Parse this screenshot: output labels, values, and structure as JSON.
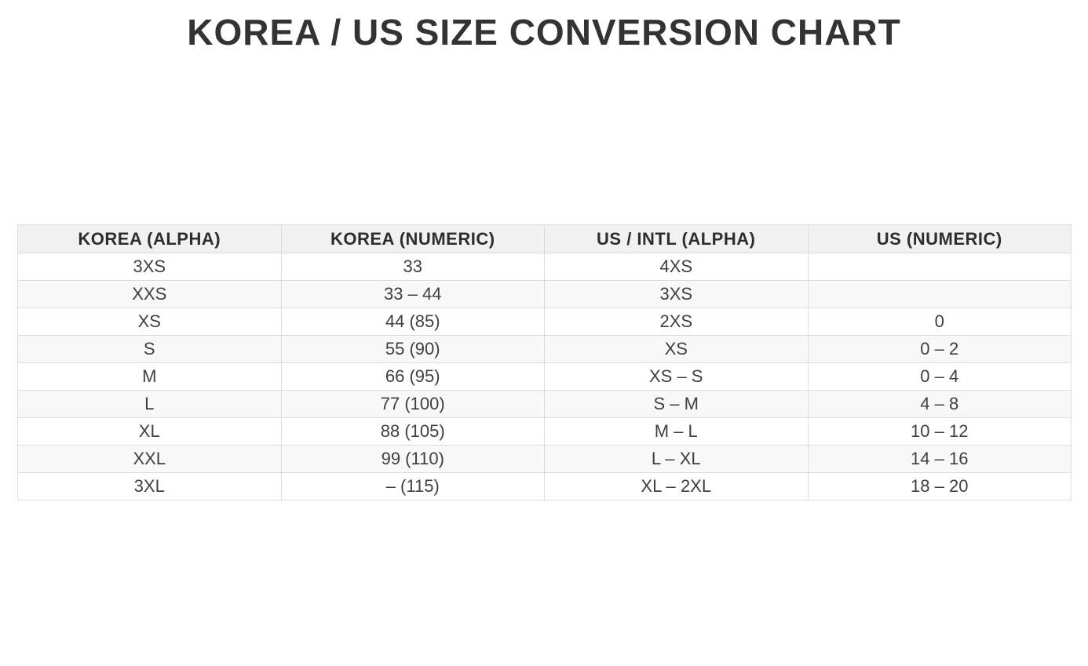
{
  "title": "KOREA / US SIZE CONVERSION CHART",
  "chart_data": {
    "type": "table",
    "title": "KOREA / US SIZE CONVERSION CHART",
    "columns": [
      "KOREA (ALPHA)",
      "KOREA (NUMERIC)",
      "US / INTL (ALPHA)",
      "US (NUMERIC)"
    ],
    "rows": [
      [
        "3XS",
        "33",
        "4XS",
        ""
      ],
      [
        "XXS",
        "33 – 44",
        "3XS",
        ""
      ],
      [
        "XS",
        "44 (85)",
        "2XS",
        "0"
      ],
      [
        "S",
        "55 (90)",
        "XS",
        "0 – 2"
      ],
      [
        "M",
        "66 (95)",
        "XS – S",
        "0 – 4"
      ],
      [
        "L",
        "77 (100)",
        "S – M",
        "4 – 8"
      ],
      [
        "XL",
        "88 (105)",
        "M – L",
        "10 – 12"
      ],
      [
        "XXL",
        "99 (110)",
        "L – XL",
        "14 – 16"
      ],
      [
        "3XL",
        "– (115)",
        "XL – 2XL",
        "18 – 20"
      ]
    ],
    "layout": {
      "grid": true,
      "striped_rows": true,
      "header_background": "#f1f1f1",
      "stripe_background": "#f8f8f8",
      "border_color": "#dddddd",
      "text_color": "#3f3f3f",
      "title_color": "#333333"
    }
  }
}
